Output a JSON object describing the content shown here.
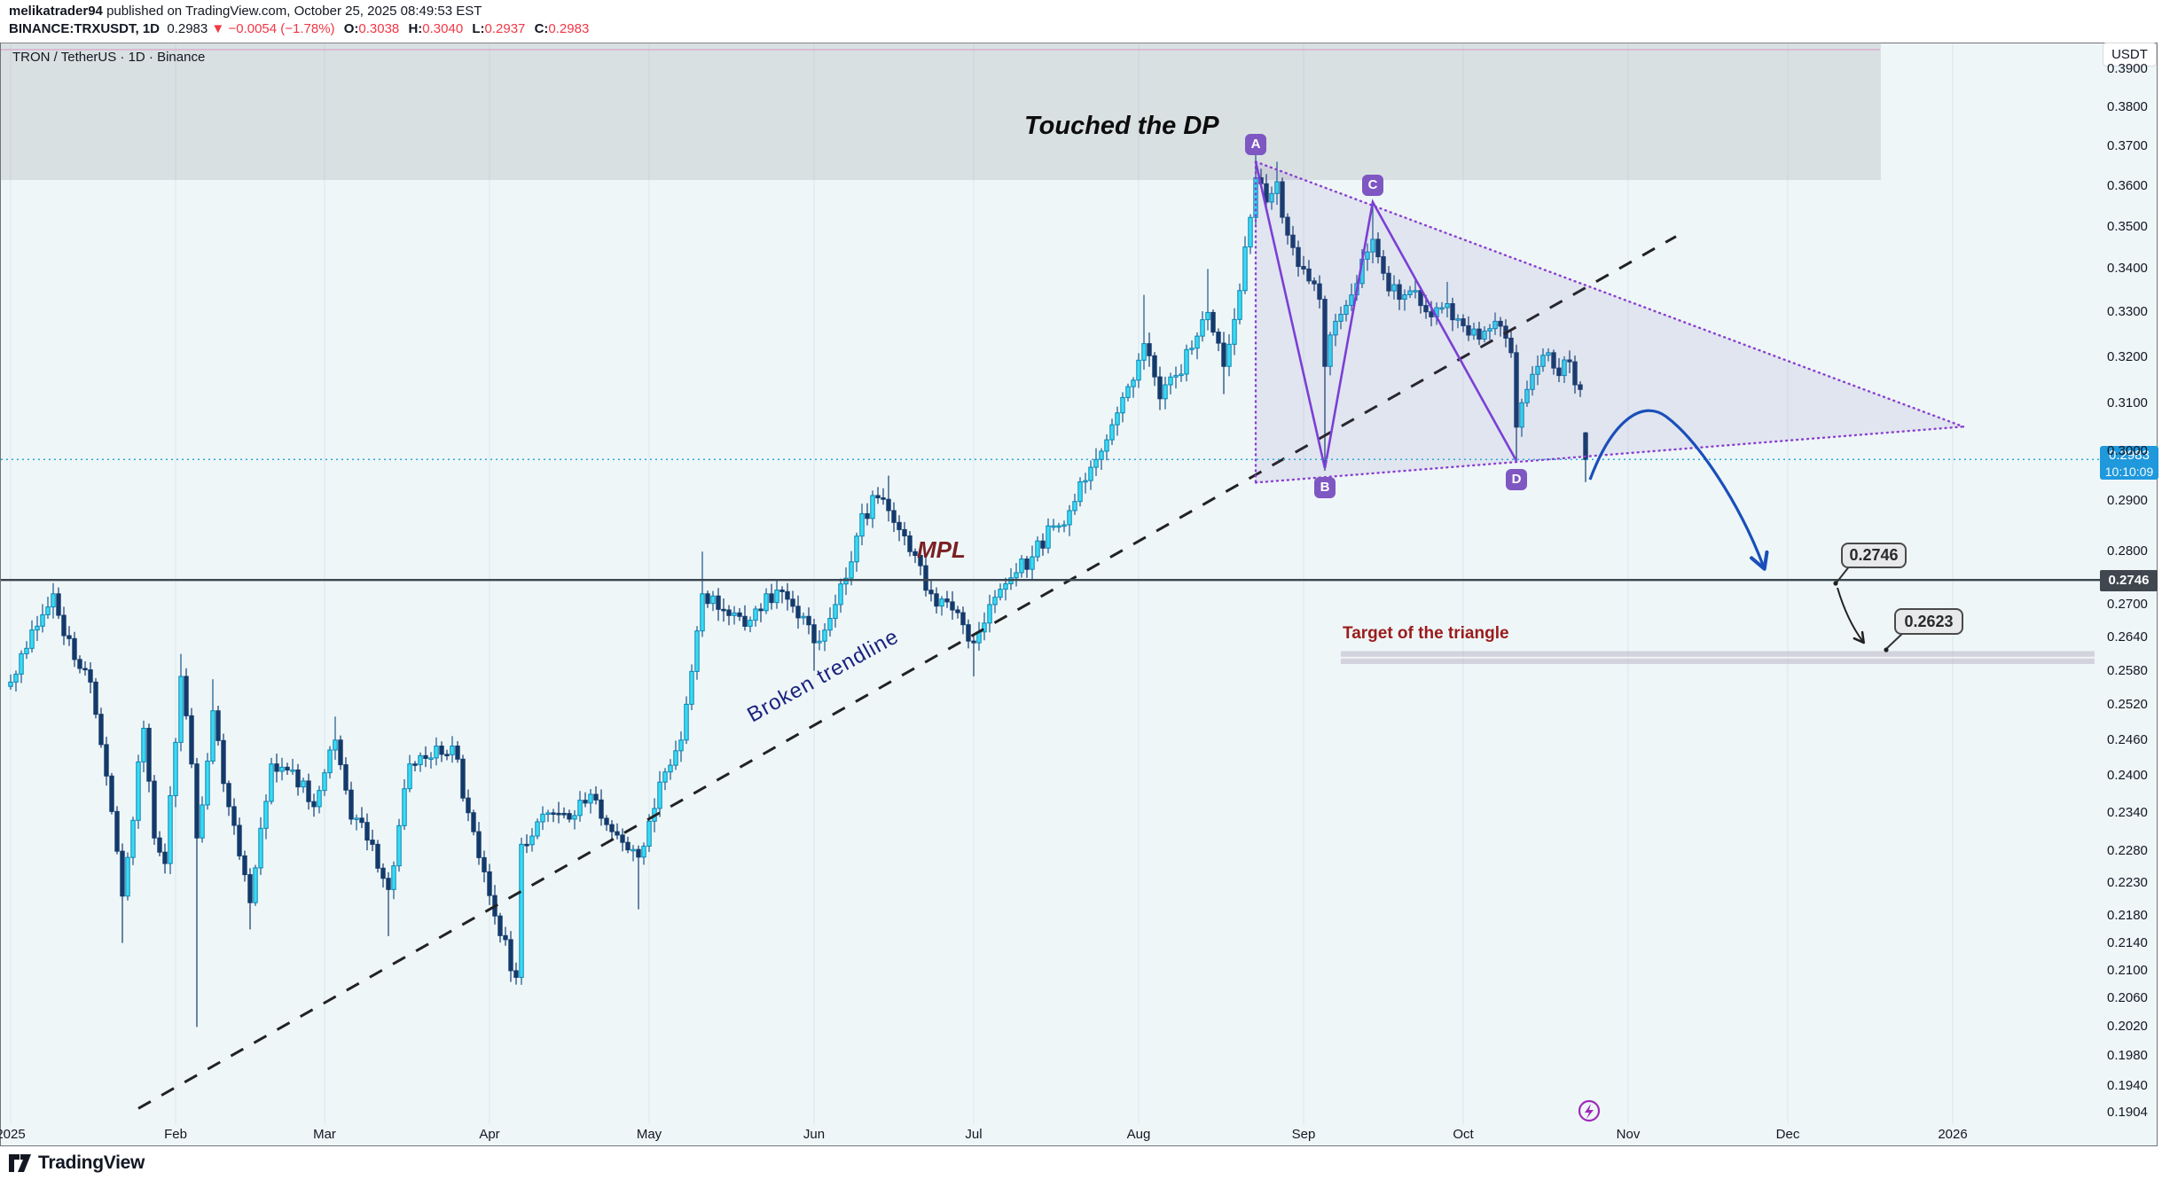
{
  "header": {
    "line1": {
      "user": "melikatrader94",
      "rest": " published on TradingView.com, October 25, 2025 08:49:53 EST"
    },
    "line2": {
      "symbol": "BINANCE:TRXUSDT, 1D",
      "price": "0.2983",
      "arrow": "▼",
      "change": "−0.0054 (−1.78%)",
      "ohlc": [
        {
          "k": "O:",
          "v": "0.3038"
        },
        {
          "k": "H:",
          "v": "0.3040"
        },
        {
          "k": "L:",
          "v": "0.2937"
        },
        {
          "k": "C:",
          "v": "0.2983"
        }
      ]
    }
  },
  "legend": "TRON / TetherUS · 1D · Binance",
  "annotations": {
    "touched_dp": "Touched the DP",
    "mpl": "MPL",
    "broken_trendline": "Broken trendline",
    "target": "Target of the triangle",
    "callout_support": "0.2746",
    "callout_target": "0.2623"
  },
  "price_axis": {
    "currency": "USDT",
    "last": {
      "price": "0.2983",
      "countdown": "10:10:09"
    },
    "support_label": "0.2746"
  },
  "footer": {
    "brand": "TradingView"
  },
  "colors": {
    "up_fill": "#38dcf4",
    "up_stroke": "#0b84b4",
    "up_wick": "#15588c",
    "down": "#133a6b",
    "red": "#f23645",
    "purple": "#7e57c2",
    "purple_line": "#7b3fd4",
    "blue_arrow": "#1a4fba",
    "support_line": "#3a4550",
    "current_price_line": "#2aa7dc",
    "zone_fill": "rgba(168,172,175,0.30)",
    "zone_top": "rgba(219,134,189,0.55)",
    "triangle_fill": "rgba(103,78,167,0.10)",
    "target_band": "rgba(178,168,190,0.45)"
  },
  "chart_data": {
    "type": "candlestick",
    "symbol": "BINANCE:TRXUSDT",
    "title": "TRON / TetherUS",
    "timeframe": "1D",
    "exchange": "Binance",
    "y_ticks": [
      0.39,
      0.38,
      0.37,
      0.36,
      0.35,
      0.34,
      0.33,
      0.32,
      0.31,
      0.3,
      0.29,
      0.28,
      0.27,
      0.264,
      0.258,
      0.252,
      0.246,
      0.24,
      0.234,
      0.228,
      0.223,
      0.218,
      0.214,
      0.21,
      0.206,
      0.202,
      0.198,
      0.194,
      0.1904
    ],
    "x_labels": [
      "2025",
      "Feb",
      "Mar",
      "Apr",
      "May",
      "Jun",
      "Jul",
      "Aug",
      "Sep",
      "Oct",
      "Nov",
      "Dec",
      "2026"
    ],
    "scale": "log",
    "current_price": 0.2983,
    "support_level": 0.2746,
    "target_level": 0.2623,
    "target_zone": [
      0.2592,
      0.2615
    ],
    "last_candle": {
      "open": 0.3038,
      "high": 0.304,
      "low": 0.2937,
      "close": 0.2983
    },
    "key_points": [
      {
        "label": "A",
        "day": 234,
        "date": "2025-08-23",
        "price": 0.366
      },
      {
        "label": "B",
        "day": 247,
        "date": "2025-09-05",
        "price": 0.2965
      },
      {
        "label": "C",
        "day": 256,
        "date": "2025-09-14",
        "price": 0.356
      },
      {
        "label": "D",
        "day": 283,
        "date": "2025-10-11",
        "price": 0.298
      }
    ],
    "triangle": {
      "start_day": 234,
      "top_price": 0.366,
      "bottom_price": 0.2936,
      "apex_day": 367,
      "apex_price": 0.3051
    },
    "broken_trendline": {
      "from_day": 24,
      "from_price": 0.191,
      "to_day": 313,
      "to_price": 0.3477
    },
    "anchors": [
      [
        0,
        0.256,
        null,
        null
      ],
      [
        3,
        0.262,
        null,
        null
      ],
      [
        8,
        0.272,
        null,
        0.274
      ],
      [
        12,
        0.26,
        null,
        null
      ],
      [
        15,
        0.256,
        null,
        null
      ],
      [
        18,
        0.24,
        null,
        null
      ],
      [
        21,
        0.221,
        0.214,
        null
      ],
      [
        25,
        0.248,
        null,
        null
      ],
      [
        27,
        0.23,
        null,
        null
      ],
      [
        29,
        0.226,
        null,
        null
      ],
      [
        32,
        0.257,
        null,
        0.261
      ],
      [
        34,
        0.242,
        null,
        null
      ],
      [
        35,
        0.23,
        0.202,
        null
      ],
      [
        38,
        0.251,
        null,
        0.2565
      ],
      [
        41,
        0.235,
        null,
        null
      ],
      [
        45,
        0.22,
        0.216,
        null
      ],
      [
        49,
        0.242,
        null,
        null
      ],
      [
        53,
        0.241,
        null,
        null
      ],
      [
        57,
        0.235,
        null,
        null
      ],
      [
        61,
        0.246,
        null,
        0.25
      ],
      [
        64,
        0.233,
        null,
        null
      ],
      [
        68,
        0.229,
        null,
        null
      ],
      [
        71,
        0.222,
        0.215,
        null
      ],
      [
        75,
        0.242,
        null,
        null
      ],
      [
        79,
        0.243,
        null,
        null
      ],
      [
        83,
        0.245,
        null,
        null
      ],
      [
        87,
        0.231,
        null,
        null
      ],
      [
        91,
        0.218,
        null,
        null
      ],
      [
        95,
        0.209,
        0.208,
        null
      ],
      [
        96,
        0.229,
        null,
        null
      ],
      [
        101,
        0.234,
        null,
        null
      ],
      [
        105,
        0.233,
        null,
        null
      ],
      [
        109,
        0.237,
        null,
        null
      ],
      [
        113,
        0.231,
        null,
        null
      ],
      [
        118,
        0.227,
        0.219,
        null
      ],
      [
        122,
        0.239,
        null,
        null
      ],
      [
        126,
        0.246,
        null,
        null
      ],
      [
        130,
        0.272,
        null,
        0.28
      ],
      [
        134,
        0.269,
        null,
        null
      ],
      [
        138,
        0.266,
        null,
        null
      ],
      [
        142,
        0.272,
        null,
        null
      ],
      [
        146,
        0.271,
        null,
        null
      ],
      [
        151,
        0.263,
        0.258,
        null
      ],
      [
        155,
        0.27,
        null,
        null
      ],
      [
        159,
        0.283,
        null,
        null
      ],
      [
        162,
        0.291,
        null,
        null
      ],
      [
        165,
        0.288,
        null,
        0.295
      ],
      [
        169,
        0.28,
        null,
        null
      ],
      [
        173,
        0.272,
        null,
        null
      ],
      [
        177,
        0.269,
        null,
        null
      ],
      [
        181,
        0.263,
        0.257,
        null
      ],
      [
        184,
        0.27,
        null,
        null
      ],
      [
        188,
        0.275,
        null,
        null
      ],
      [
        192,
        0.279,
        null,
        null
      ],
      [
        196,
        0.285,
        null,
        null
      ],
      [
        199,
        0.288,
        null,
        null
      ],
      [
        202,
        0.294,
        null,
        null
      ],
      [
        205,
        0.3,
        null,
        null
      ],
      [
        208,
        0.308,
        null,
        null
      ],
      [
        211,
        0.315,
        null,
        null
      ],
      [
        213,
        0.323,
        null,
        0.334
      ],
      [
        216,
        0.311,
        null,
        null
      ],
      [
        219,
        0.316,
        null,
        null
      ],
      [
        222,
        0.322,
        null,
        null
      ],
      [
        225,
        0.33,
        null,
        0.34
      ],
      [
        228,
        0.318,
        0.312,
        null
      ],
      [
        231,
        0.335,
        null,
        null
      ],
      [
        234,
        0.362,
        null,
        0.368
      ],
      [
        236,
        0.356,
        null,
        null
      ],
      [
        238,
        0.361,
        null,
        0.366
      ],
      [
        240,
        0.348,
        null,
        null
      ],
      [
        243,
        0.34,
        null,
        null
      ],
      [
        246,
        0.333,
        null,
        null
      ],
      [
        247,
        0.318,
        0.296,
        null
      ],
      [
        249,
        0.328,
        null,
        null
      ],
      [
        252,
        0.334,
        null,
        null
      ],
      [
        255,
        0.344,
        null,
        null
      ],
      [
        256,
        0.347,
        null,
        0.356
      ],
      [
        258,
        0.339,
        null,
        null
      ],
      [
        261,
        0.333,
        null,
        null
      ],
      [
        264,
        0.335,
        null,
        null
      ],
      [
        267,
        0.329,
        null,
        null
      ],
      [
        270,
        0.332,
        null,
        0.337
      ],
      [
        273,
        0.327,
        null,
        null
      ],
      [
        276,
        0.324,
        null,
        null
      ],
      [
        279,
        0.328,
        null,
        null
      ],
      [
        282,
        0.321,
        null,
        null
      ],
      [
        283,
        0.305,
        0.298,
        null
      ],
      [
        285,
        0.313,
        null,
        null
      ],
      [
        287,
        0.318,
        null,
        null
      ],
      [
        289,
        0.321,
        null,
        null
      ],
      [
        291,
        0.316,
        null,
        null
      ],
      [
        293,
        0.319,
        null,
        null
      ],
      [
        294,
        0.314,
        null,
        null
      ],
      [
        295,
        0.313,
        null,
        null
      ],
      [
        296,
        0.2983,
        0.2937,
        0.304
      ]
    ]
  }
}
